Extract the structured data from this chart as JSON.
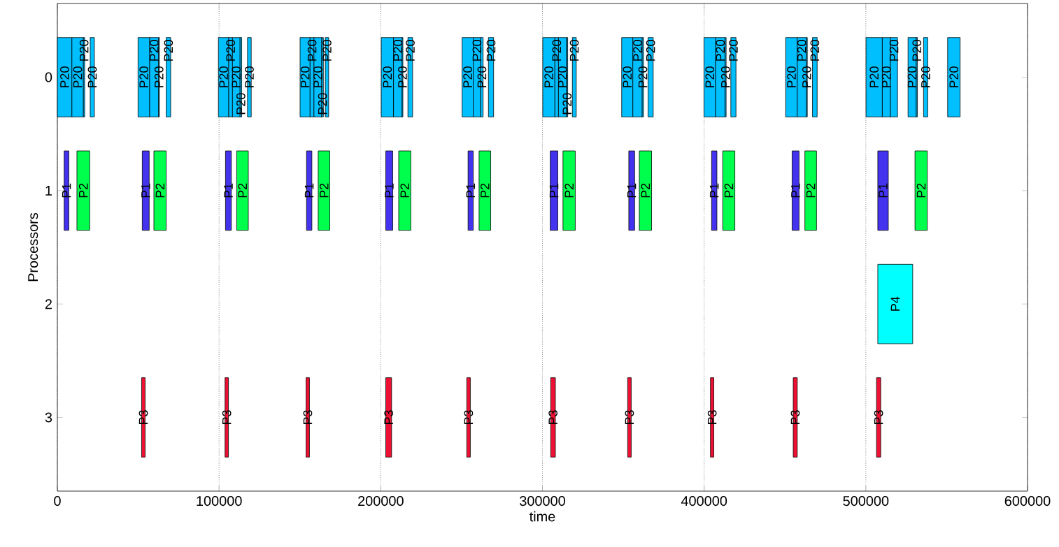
{
  "chart_data": {
    "type": "bar",
    "orientation": "horizontal",
    "xlabel": "time",
    "ylabel": "Processors",
    "categories": [
      "0",
      "1",
      "2",
      "3"
    ],
    "xlim": [
      0,
      600000
    ],
    "xticks": [
      0,
      100000,
      200000,
      300000,
      400000,
      500000,
      600000
    ],
    "grid": "x",
    "series": [
      {
        "base": [
          0,
          4200,
          507400,
          52100
        ],
        "values": [
          9000,
          2900,
          21600,
          2200
        ],
        "colors": [
          "#00bfff",
          "#4433ee",
          "#00ffff",
          "#ee1133"
        ],
        "value_labels": [
          "P20",
          "P1",
          "P4",
          "P3"
        ]
      },
      {
        "base": [
          9000,
          12100,
          null,
          103700
        ],
        "values": [
          7100,
          7900,
          null,
          2100
        ],
        "colors": [
          "#00bfff",
          "#00ff4c",
          null,
          "#ee1133"
        ],
        "value_labels": [
          "P20",
          "P2",
          null,
          "P3"
        ]
      },
      {
        "base": [
          16100,
          52500,
          null,
          153800
        ],
        "values": [
          800,
          4300,
          null,
          2100
        ],
        "colors": [
          "#00bfff",
          "#4433ee",
          null,
          "#ee1133"
        ],
        "value_labels": [
          "P20",
          "P1",
          null,
          "P3"
        ]
      },
      {
        "base": [
          20300,
          59700,
          null,
          203100
        ],
        "values": [
          2600,
          7600,
          null,
          3600
        ],
        "colors": [
          "#00bfff",
          "#00ff4c",
          null,
          "#ee1133"
        ],
        "value_labels": [
          "P20",
          "P2",
          null,
          "P3"
        ]
      },
      {
        "base": [
          49900,
          104000,
          null,
          253200
        ],
        "values": [
          7200,
          3600,
          null,
          2200
        ],
        "colors": [
          "#00bfff",
          "#4433ee",
          null,
          "#ee1133"
        ],
        "value_labels": [
          "P20",
          "P1",
          null,
          "P3"
        ]
      },
      {
        "base": [
          57100,
          110900,
          null,
          305100
        ],
        "values": [
          5500,
          7200,
          null,
          2900
        ],
        "colors": [
          "#00bfff",
          "#00ff4c",
          null,
          "#ee1133"
        ],
        "value_labels": [
          "P20",
          "P2",
          null,
          "P3"
        ]
      },
      {
        "base": [
          62600,
          154100,
          null,
          352700
        ],
        "values": [
          500,
          3300,
          null,
          2200
        ],
        "colors": [
          "#00bfff",
          "#4433ee",
          null,
          "#ee1133"
        ],
        "value_labels": [
          "P20",
          "P1",
          null,
          "P3"
        ]
      },
      {
        "base": [
          67300,
          161300,
          null,
          403900
        ],
        "values": [
          2800,
          7200,
          null,
          2100
        ],
        "colors": [
          "#00bfff",
          "#00ff4c",
          null,
          "#ee1133"
        ],
        "value_labels": [
          "P20",
          "P2",
          null,
          "P3"
        ]
      },
      {
        "base": [
          99600,
          203100,
          null,
          455100
        ],
        "values": [
          6400,
          4300,
          null,
          2500
        ],
        "colors": [
          "#00bfff",
          "#4433ee",
          null,
          "#ee1133"
        ],
        "value_labels": [
          "P20",
          "P1",
          null,
          "P3"
        ]
      },
      {
        "base": [
          106000,
          211100,
          null,
          506600
        ],
        "values": [
          2300,
          7500,
          null,
          2600
        ],
        "colors": [
          "#00bfff",
          "#00ff4c",
          null,
          "#ee1133"
        ],
        "value_labels": [
          "P20",
          "P2",
          null,
          "P3"
        ]
      },
      {
        "base": [
          108300,
          254000,
          null,
          null
        ],
        "values": [
          4700,
          3200,
          null,
          null
        ],
        "colors": [
          "#00bfff",
          "#4433ee",
          null,
          null
        ],
        "value_labels": [
          "P20",
          "P1",
          null,
          null
        ]
      },
      {
        "base": [
          113000,
          260800,
          null,
          null
        ],
        "values": [
          1000,
          7200,
          null,
          null
        ],
        "colors": [
          "#00bfff",
          "#00ff4c",
          null,
          null
        ],
        "value_labels": [
          "P20",
          "P2",
          null,
          null
        ]
      },
      {
        "base": [
          117600,
          304800,
          null,
          null
        ],
        "values": [
          2300,
          4700,
          null,
          null
        ],
        "colors": [
          "#00bfff",
          "#4433ee",
          null,
          null
        ],
        "value_labels": [
          "P20",
          "P1",
          null,
          null
        ]
      },
      {
        "base": [
          150100,
          312700,
          null,
          null
        ],
        "values": [
          6200,
          7600,
          null,
          null
        ],
        "colors": [
          "#00bfff",
          "#00ff4c",
          null,
          null
        ],
        "value_labels": [
          "P20",
          "P2",
          null,
          null
        ]
      },
      {
        "base": [
          156300,
          353400,
          null,
          null
        ],
        "values": [
          2400,
          3600,
          null,
          null
        ],
        "colors": [
          "#00bfff",
          "#4433ee",
          null,
          null
        ],
        "value_labels": [
          "P20",
          "P1",
          null,
          null
        ]
      },
      {
        "base": [
          158700,
          359900,
          null,
          null
        ],
        "values": [
          4800,
          7600,
          null,
          null
        ],
        "colors": [
          "#00bfff",
          "#00ff4c",
          null,
          null
        ],
        "value_labels": [
          "P20",
          "P2",
          null,
          null
        ]
      },
      {
        "base": [
          163500,
          404600,
          null,
          null
        ],
        "values": [
          1000,
          3300,
          null,
          null
        ],
        "colors": [
          "#00bfff",
          "#4433ee",
          null,
          null
        ],
        "value_labels": [
          "P20",
          "P1",
          null,
          null
        ]
      },
      {
        "base": [
          165700,
          411500,
          null,
          null
        ],
        "values": [
          2100,
          7500,
          null,
          null
        ],
        "colors": [
          "#00bfff",
          "#00ff4c",
          null,
          null
        ],
        "value_labels": [
          "P20",
          "P2",
          null,
          null
        ]
      },
      {
        "base": [
          200300,
          454400,
          null,
          null
        ],
        "values": [
          7600,
          4300,
          null,
          null
        ],
        "colors": [
          "#00bfff",
          "#4433ee",
          null,
          null
        ],
        "value_labels": [
          "P20",
          "P1",
          null,
          null
        ]
      },
      {
        "base": [
          207900,
          462300,
          null,
          null
        ],
        "values": [
          5300,
          7200,
          null,
          null
        ],
        "colors": [
          "#00bfff",
          "#00ff4c",
          null,
          null
        ],
        "value_labels": [
          "P20",
          "P2",
          null,
          null
        ]
      },
      {
        "base": [
          213200,
          507400,
          null,
          null
        ],
        "values": [
          500,
          6500,
          null,
          null
        ],
        "colors": [
          "#00bfff",
          "#4433ee",
          null,
          null
        ],
        "value_labels": [
          "P20",
          "P1",
          null,
          null
        ]
      },
      {
        "base": [
          216800,
          530400,
          null,
          null
        ],
        "values": [
          2900,
          7600,
          null,
          null
        ],
        "colors": [
          "#00bfff",
          "#00ff4c",
          null,
          null
        ],
        "value_labels": [
          "P20",
          "P2",
          null,
          null
        ]
      },
      {
        "base": [
          250300,
          null,
          null,
          null
        ],
        "values": [
          6900,
          null,
          null,
          null
        ],
        "colors": [
          "#00bfff",
          null,
          null,
          null
        ],
        "value_labels": [
          "P20",
          null,
          null,
          null
        ]
      },
      {
        "base": [
          257200,
          null,
          null,
          null
        ],
        "values": [
          4600,
          null,
          null,
          null
        ],
        "colors": [
          "#00bfff",
          null,
          null,
          null
        ],
        "value_labels": [
          "P20",
          null,
          null,
          null
        ]
      },
      {
        "base": [
          261800,
          null,
          null,
          null
        ],
        "values": [
          1500,
          null,
          null,
          null
        ],
        "colors": [
          "#00bfff",
          null,
          null,
          null
        ],
        "value_labels": [
          "P20",
          null,
          null,
          null
        ]
      },
      {
        "base": [
          266600,
          null,
          null,
          null
        ],
        "values": [
          3200,
          null,
          null,
          null
        ],
        "colors": [
          "#00bfff",
          null,
          null,
          null
        ],
        "value_labels": [
          "P20",
          null,
          null,
          null
        ]
      },
      {
        "base": [
          300200,
          null,
          null,
          null
        ],
        "values": [
          7500,
          null,
          null,
          null
        ],
        "colors": [
          "#00bfff",
          null,
          null,
          null
        ],
        "value_labels": [
          "P20",
          null,
          null,
          null
        ]
      },
      {
        "base": [
          307700,
          null,
          null,
          null
        ],
        "values": [
          2200,
          null,
          null,
          null
        ],
        "colors": [
          "#00bfff",
          null,
          null,
          null
        ],
        "value_labels": [
          "P20",
          null,
          null,
          null
        ]
      },
      {
        "base": [
          309900,
          null,
          null,
          null
        ],
        "values": [
          5000,
          null,
          null,
          null
        ],
        "colors": [
          "#00bfff",
          null,
          null,
          null
        ],
        "value_labels": [
          "P20",
          null,
          null,
          null
        ]
      },
      {
        "base": [
          314900,
          null,
          null,
          null
        ],
        "values": [
          700,
          null,
          null,
          null
        ],
        "colors": [
          "#00bfff",
          null,
          null,
          null
        ],
        "value_labels": [
          "P20",
          null,
          null,
          null
        ]
      },
      {
        "base": [
          318500,
          null,
          null,
          null
        ],
        "values": [
          2400,
          null,
          null,
          null
        ],
        "colors": [
          "#00bfff",
          null,
          null,
          null
        ],
        "value_labels": [
          "P20",
          null,
          null,
          null
        ]
      },
      {
        "base": [
          349000,
          null,
          null,
          null
        ],
        "values": [
          6900,
          null,
          null,
          null
        ],
        "colors": [
          "#00bfff",
          null,
          null,
          null
        ],
        "value_labels": [
          "P20",
          null,
          null,
          null
        ]
      },
      {
        "base": [
          355900,
          null,
          null,
          null
        ],
        "values": [
          5800,
          null,
          null,
          null
        ],
        "colors": [
          "#00bfff",
          null,
          null,
          null
        ],
        "value_labels": [
          "P20",
          null,
          null,
          null
        ]
      },
      {
        "base": [
          361700,
          null,
          null,
          null
        ],
        "values": [
          800,
          null,
          null,
          null
        ],
        "colors": [
          "#00bfff",
          null,
          null,
          null
        ],
        "value_labels": [
          "P20",
          null,
          null,
          null
        ]
      },
      {
        "base": [
          365300,
          null,
          null,
          null
        ],
        "values": [
          3200,
          null,
          null,
          null
        ],
        "colors": [
          "#00bfff",
          null,
          null,
          null
        ],
        "value_labels": [
          "P20",
          null,
          null,
          null
        ]
      },
      {
        "base": [
          399900,
          null,
          null,
          null
        ],
        "values": [
          7200,
          null,
          null,
          null
        ],
        "colors": [
          "#00bfff",
          null,
          null,
          null
        ],
        "value_labels": [
          "P20",
          null,
          null,
          null
        ]
      },
      {
        "base": [
          407100,
          null,
          null,
          null
        ],
        "values": [
          5800,
          null,
          null,
          null
        ],
        "colors": [
          "#00bfff",
          null,
          null,
          null
        ],
        "value_labels": [
          "P20",
          null,
          null,
          null
        ]
      },
      {
        "base": [
          412900,
          null,
          null,
          null
        ],
        "values": [
          700,
          null,
          null,
          null
        ],
        "colors": [
          "#00bfff",
          null,
          null,
          null
        ],
        "value_labels": [
          "P20",
          null,
          null,
          null
        ]
      },
      {
        "base": [
          416500,
          null,
          null,
          null
        ],
        "values": [
          3200,
          null,
          null,
          null
        ],
        "colors": [
          "#00bfff",
          null,
          null,
          null
        ],
        "value_labels": [
          "P20",
          null,
          null,
          null
        ]
      },
      {
        "base": [
          450400,
          null,
          null,
          null
        ],
        "values": [
          7200,
          null,
          null,
          null
        ],
        "colors": [
          "#00bfff",
          null,
          null,
          null
        ],
        "value_labels": [
          "P20",
          null,
          null,
          null
        ]
      },
      {
        "base": [
          457600,
          null,
          null,
          null
        ],
        "values": [
          5500,
          null,
          null,
          null
        ],
        "colors": [
          "#00bfff",
          null,
          null,
          null
        ],
        "value_labels": [
          "P20",
          null,
          null,
          null
        ]
      },
      {
        "base": [
          463100,
          null,
          null,
          null
        ],
        "values": [
          700,
          null,
          null,
          null
        ],
        "colors": [
          "#00bfff",
          null,
          null,
          null
        ],
        "value_labels": [
          "P20",
          null,
          null,
          null
        ]
      },
      {
        "base": [
          467000,
          null,
          null,
          null
        ],
        "values": [
          2900,
          null,
          null,
          null
        ],
        "colors": [
          "#00bfff",
          null,
          null,
          null
        ],
        "value_labels": [
          "P20",
          null,
          null,
          null
        ]
      },
      {
        "base": [
          500100,
          null,
          null,
          null
        ],
        "values": [
          10100,
          null,
          null,
          null
        ],
        "colors": [
          "#00bfff",
          null,
          null,
          null
        ],
        "value_labels": [
          "P20",
          null,
          null,
          null
        ]
      },
      {
        "base": [
          510200,
          null,
          null,
          null
        ],
        "values": [
          5000,
          null,
          null,
          null
        ],
        "colors": [
          "#00bfff",
          null,
          null,
          null
        ],
        "value_labels": [
          "P20",
          null,
          null,
          null
        ]
      },
      {
        "base": [
          515200,
          null,
          null,
          null
        ],
        "values": [
          4400,
          null,
          null,
          null
        ],
        "colors": [
          "#00bfff",
          null,
          null,
          null
        ],
        "value_labels": [
          "P20",
          null,
          null,
          null
        ]
      },
      {
        "base": [
          526100,
          null,
          null,
          null
        ],
        "values": [
          5100,
          null,
          null,
          null
        ],
        "colors": [
          "#00bfff",
          null,
          null,
          null
        ],
        "value_labels": [
          "P20",
          null,
          null,
          null
        ]
      },
      {
        "base": [
          531200,
          null,
          null,
          null
        ],
        "values": [
          700,
          null,
          null,
          null
        ],
        "colors": [
          "#00bfff",
          null,
          null,
          null
        ],
        "value_labels": [
          "P20",
          null,
          null,
          null
        ]
      },
      {
        "base": [
          535700,
          null,
          null,
          null
        ],
        "values": [
          2600,
          null,
          null,
          null
        ],
        "colors": [
          "#00bfff",
          null,
          null,
          null
        ],
        "value_labels": [
          "P20",
          null,
          null,
          null
        ]
      },
      {
        "base": [
          550600,
          null,
          null,
          null
        ],
        "values": [
          7700,
          null,
          null,
          null
        ],
        "colors": [
          "#00bfff",
          null,
          null,
          null
        ],
        "value_labels": [
          "P20",
          null,
          null,
          null
        ]
      }
    ]
  }
}
